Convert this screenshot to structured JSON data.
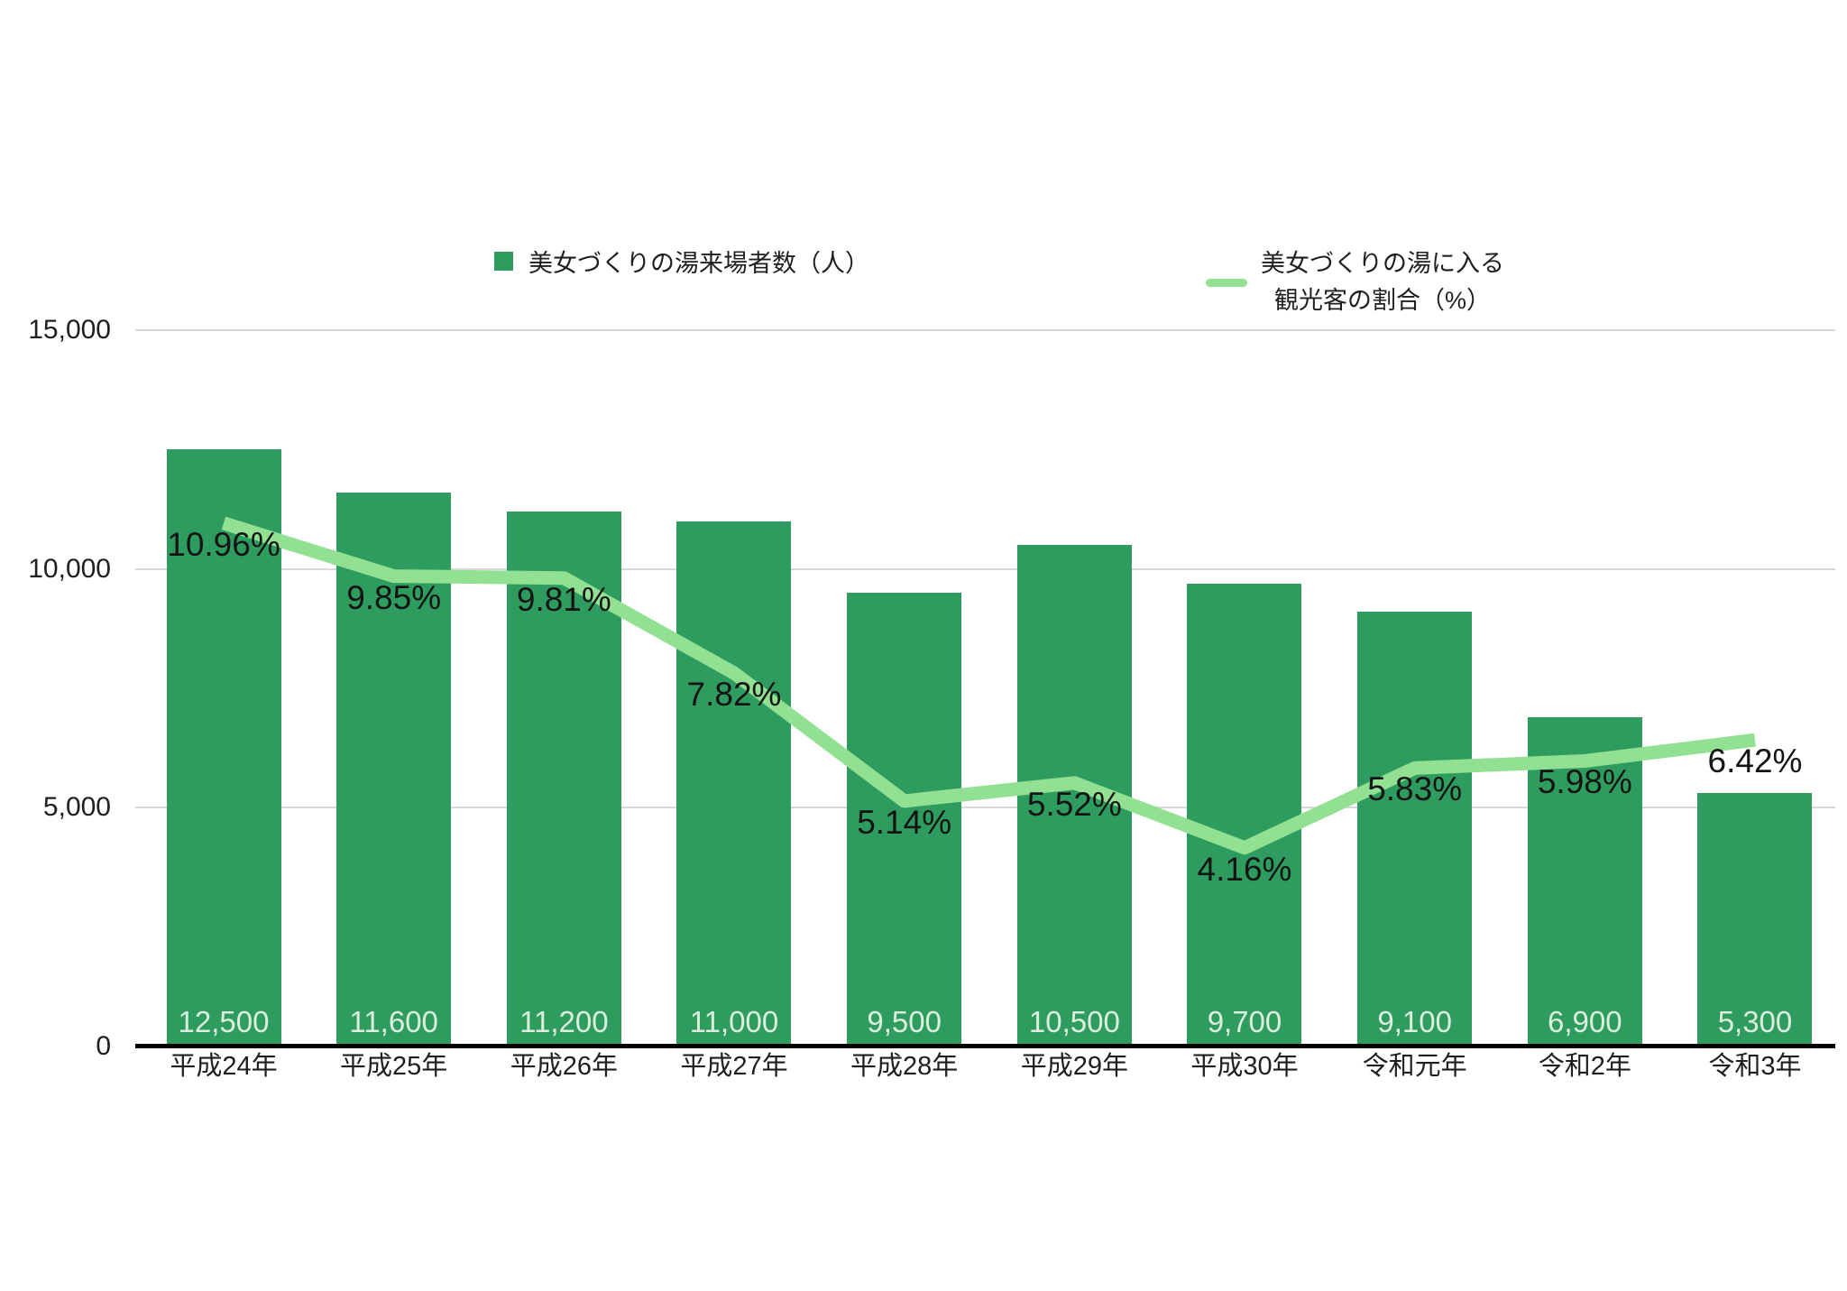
{
  "legend": {
    "bar_series_label": "美女づくりの湯来場者数（人）",
    "line_series_label_line1": "美女づくりの湯に入る",
    "line_series_label_line2": "観光客の割合（%）"
  },
  "colors": {
    "bar": "#2F9C5F",
    "line": "#92E192",
    "bar_value_text": "#DCEFDF",
    "text": "#1F1F1F",
    "gridline": "#D8D8D8",
    "axis_line": "#000000",
    "background": "#FFFFFF"
  },
  "chart_data": {
    "type": "bar",
    "subtype": "combo-bar-line",
    "title": "",
    "xlabel": "",
    "ylabel": "",
    "grid": true,
    "legend_position": "top",
    "categories": [
      "平成24年",
      "平成25年",
      "平成26年",
      "平成27年",
      "平成28年",
      "平成29年",
      "平成30年",
      "令和元年",
      "令和2年",
      "令和3年"
    ],
    "series": [
      {
        "name": "美女づくりの湯来場者数（人）",
        "type": "bar",
        "values": [
          12500,
          11600,
          11200,
          11000,
          9500,
          10500,
          9700,
          9100,
          6900,
          5300
        ],
        "value_labels": [
          "12,500",
          "11,600",
          "11,200",
          "11,000",
          "9,500",
          "10,500",
          "9,700",
          "9,100",
          "6,900",
          "5,300"
        ]
      },
      {
        "name": "美女づくりの湯に入る観光客の割合（%）",
        "type": "line",
        "values": [
          10.96,
          9.85,
          9.81,
          7.82,
          5.14,
          5.52,
          4.16,
          5.83,
          5.98,
          6.42
        ],
        "value_labels": [
          "10.96%",
          "9.85%",
          "9.81%",
          "7.82%",
          "5.14%",
          "5.52%",
          "4.16%",
          "5.83%",
          "5.98%",
          "6.42%"
        ]
      }
    ],
    "y_axis": {
      "min": 0,
      "max": 15000,
      "ticks": [
        {
          "label": "15,000",
          "value": 15000
        },
        {
          "label": "10,000",
          "value": 10000
        },
        {
          "label": "5,000",
          "value": 5000
        },
        {
          "label": "0",
          "value": 0
        }
      ]
    },
    "line_axis": {
      "min": 0,
      "max": 15
    }
  }
}
